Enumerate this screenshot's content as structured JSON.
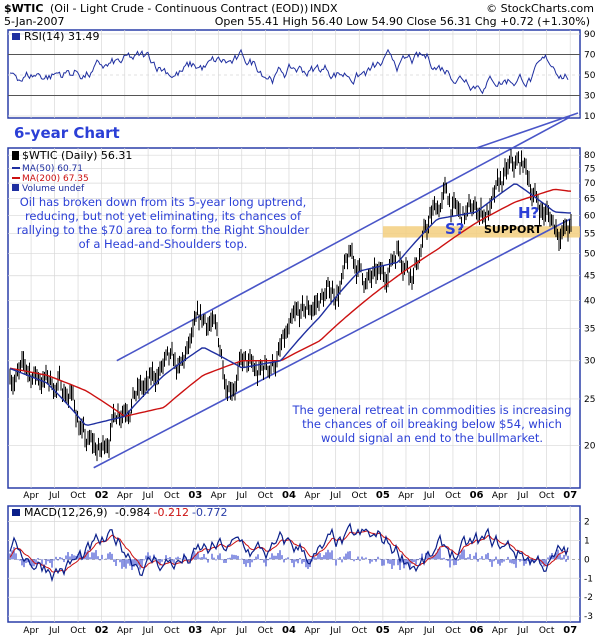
{
  "header": {
    "symbol": "$WTIC",
    "name": "(Oil - Light Crude - Continuous Contract (EOD))",
    "exchange": "INDX",
    "credit": "© StockCharts.com",
    "date": "5-Jan-2007",
    "ohlc": "Open 55.41  High 56.40  Low 54.90  Close 56.31  Chg +0.72 (+1.30%)"
  },
  "colors": {
    "frame": "#2a3ea8",
    "price": "#000000",
    "ma50": "#1f2fa0",
    "ma200": "#cc1111",
    "rsi": "#1f2fa0",
    "macd": "#0a1f8a",
    "signal": "#cc1111",
    "channel": "#4a56c8",
    "support_band": "#f3cf7f",
    "annotation": "#2b3fd6"
  },
  "rsi_panel": {
    "label": "RSI(14) 31.49",
    "ticks": [
      "90",
      "70",
      "50",
      "30",
      "10"
    ],
    "chart_title": "6-year Chart"
  },
  "price_panel": {
    "legend": {
      "title": "$WTIC (Daily) 56.31",
      "ma50": "MA(50) 60.71",
      "ma200": "MA(200) 67.35",
      "volume": "Volume undef"
    },
    "ticks": [
      "80",
      "75",
      "70",
      "65",
      "60",
      "55",
      "50",
      "45",
      "40",
      "35",
      "30",
      "25",
      "20"
    ],
    "annotations": {
      "top_note": [
        "Oil has broken down from its 5-year long uptrend,",
        "reducing, but not yet eliminating, its chances of",
        "rallying to the $70 area to form the Right Shoulder",
        "of a Head-and-Shoulders top."
      ],
      "bottom_note": [
        "The general retreat in commodities is increasing",
        "the chances of oil breaking below $54, which",
        "would signal an end to the bullmarket."
      ],
      "left_shoulder": "S?",
      "head": "H?",
      "support": "SUPPORT"
    }
  },
  "macd_panel": {
    "label_prefix": "MACD(12,26,9)",
    "macd_value": "-0.984",
    "signal_value": "-0.212",
    "hist_value": "-0.772",
    "ticks": [
      "2",
      "1",
      "0",
      "-1",
      "-2",
      "-3"
    ]
  },
  "x_axis": {
    "months": [
      "Apr",
      "Jul",
      "Oct",
      "02",
      "Apr",
      "Jul",
      "Oct",
      "03",
      "Apr",
      "Jul",
      "Oct",
      "04",
      "Apr",
      "Jul",
      "Oct",
      "05",
      "Apr",
      "Jul",
      "Oct",
      "06",
      "Apr",
      "Jul",
      "Oct",
      "07"
    ]
  },
  "chart_data": [
    {
      "type": "line",
      "title": "RSI(14) 31.49",
      "ylim": [
        10,
        90
      ],
      "reference_lines": [
        70,
        30
      ],
      "x_range": [
        "2001-01",
        "2007-01"
      ],
      "grid": true
    },
    {
      "type": "line",
      "title": "$WTIC (Daily) 56.31",
      "scale": "log",
      "ylim": [
        16.5,
        82
      ],
      "x_range": [
        "2001-01",
        "2007-01"
      ],
      "grid": true,
      "series": [
        {
          "name": "$WTIC (Daily) 56.31",
          "x": [
            "2001-01",
            "2001-03",
            "2001-05",
            "2001-07",
            "2001-09",
            "2001-11",
            "2002-01",
            "2002-03",
            "2002-05",
            "2002-07",
            "2002-09",
            "2002-11",
            "2003-01",
            "2003-03",
            "2003-05",
            "2003-07",
            "2003-09",
            "2003-11",
            "2004-01",
            "2004-03",
            "2004-05",
            "2004-07",
            "2004-09",
            "2004-11",
            "2005-01",
            "2005-03",
            "2005-05",
            "2005-07",
            "2005-09",
            "2005-11",
            "2006-01",
            "2006-03",
            "2006-05",
            "2006-07",
            "2006-09",
            "2006-11",
            "2007-01"
          ],
          "values": [
            29,
            28,
            28,
            27,
            26,
            20,
            19,
            24,
            27,
            26,
            29,
            27,
            33,
            36,
            28,
            30,
            27,
            30,
            33,
            36,
            40,
            42,
            48,
            44,
            43,
            53,
            48,
            58,
            66,
            58,
            61,
            62,
            71,
            75,
            63,
            58,
            56
          ]
        },
        {
          "name": "MA(50) 60.71",
          "x": [
            "2001-01",
            "2001-06",
            "2001-11",
            "2002-04",
            "2002-09",
            "2003-02",
            "2003-07",
            "2003-12",
            "2004-05",
            "2004-10",
            "2005-03",
            "2005-08",
            "2006-01",
            "2006-06",
            "2006-11",
            "2007-01"
          ],
          "values": [
            29,
            27,
            22,
            23,
            28,
            32,
            29,
            30,
            37,
            46,
            48,
            59,
            61,
            70,
            61,
            60.71
          ]
        },
        {
          "name": "MA(200) 67.35",
          "x": [
            "2001-01",
            "2001-06",
            "2001-11",
            "2002-04",
            "2002-09",
            "2003-02",
            "2003-07",
            "2003-12",
            "2004-05",
            "2004-10",
            "2005-03",
            "2005-08",
            "2006-01",
            "2006-06",
            "2006-11",
            "2007-01"
          ],
          "values": [
            29,
            28,
            26,
            23,
            24,
            28,
            30,
            30,
            33,
            39,
            45,
            51,
            58,
            64,
            68,
            67.35
          ]
        }
      ],
      "trendlines": [
        {
          "from": {
            "x": "2001-12",
            "y": 18
          },
          "to": {
            "x": "2007-01",
            "y": 59
          }
        },
        {
          "from": {
            "x": "2002-03",
            "y": 30
          },
          "to": {
            "x": "2007-01",
            "y": 96
          }
        }
      ],
      "support_zone": [
        54,
        57
      ]
    },
    {
      "type": "line",
      "title": "MACD(12,26,9)",
      "ylim": [
        -3.2,
        2.6
      ],
      "x_range": [
        "2001-01",
        "2007-01"
      ],
      "grid": true
    }
  ]
}
